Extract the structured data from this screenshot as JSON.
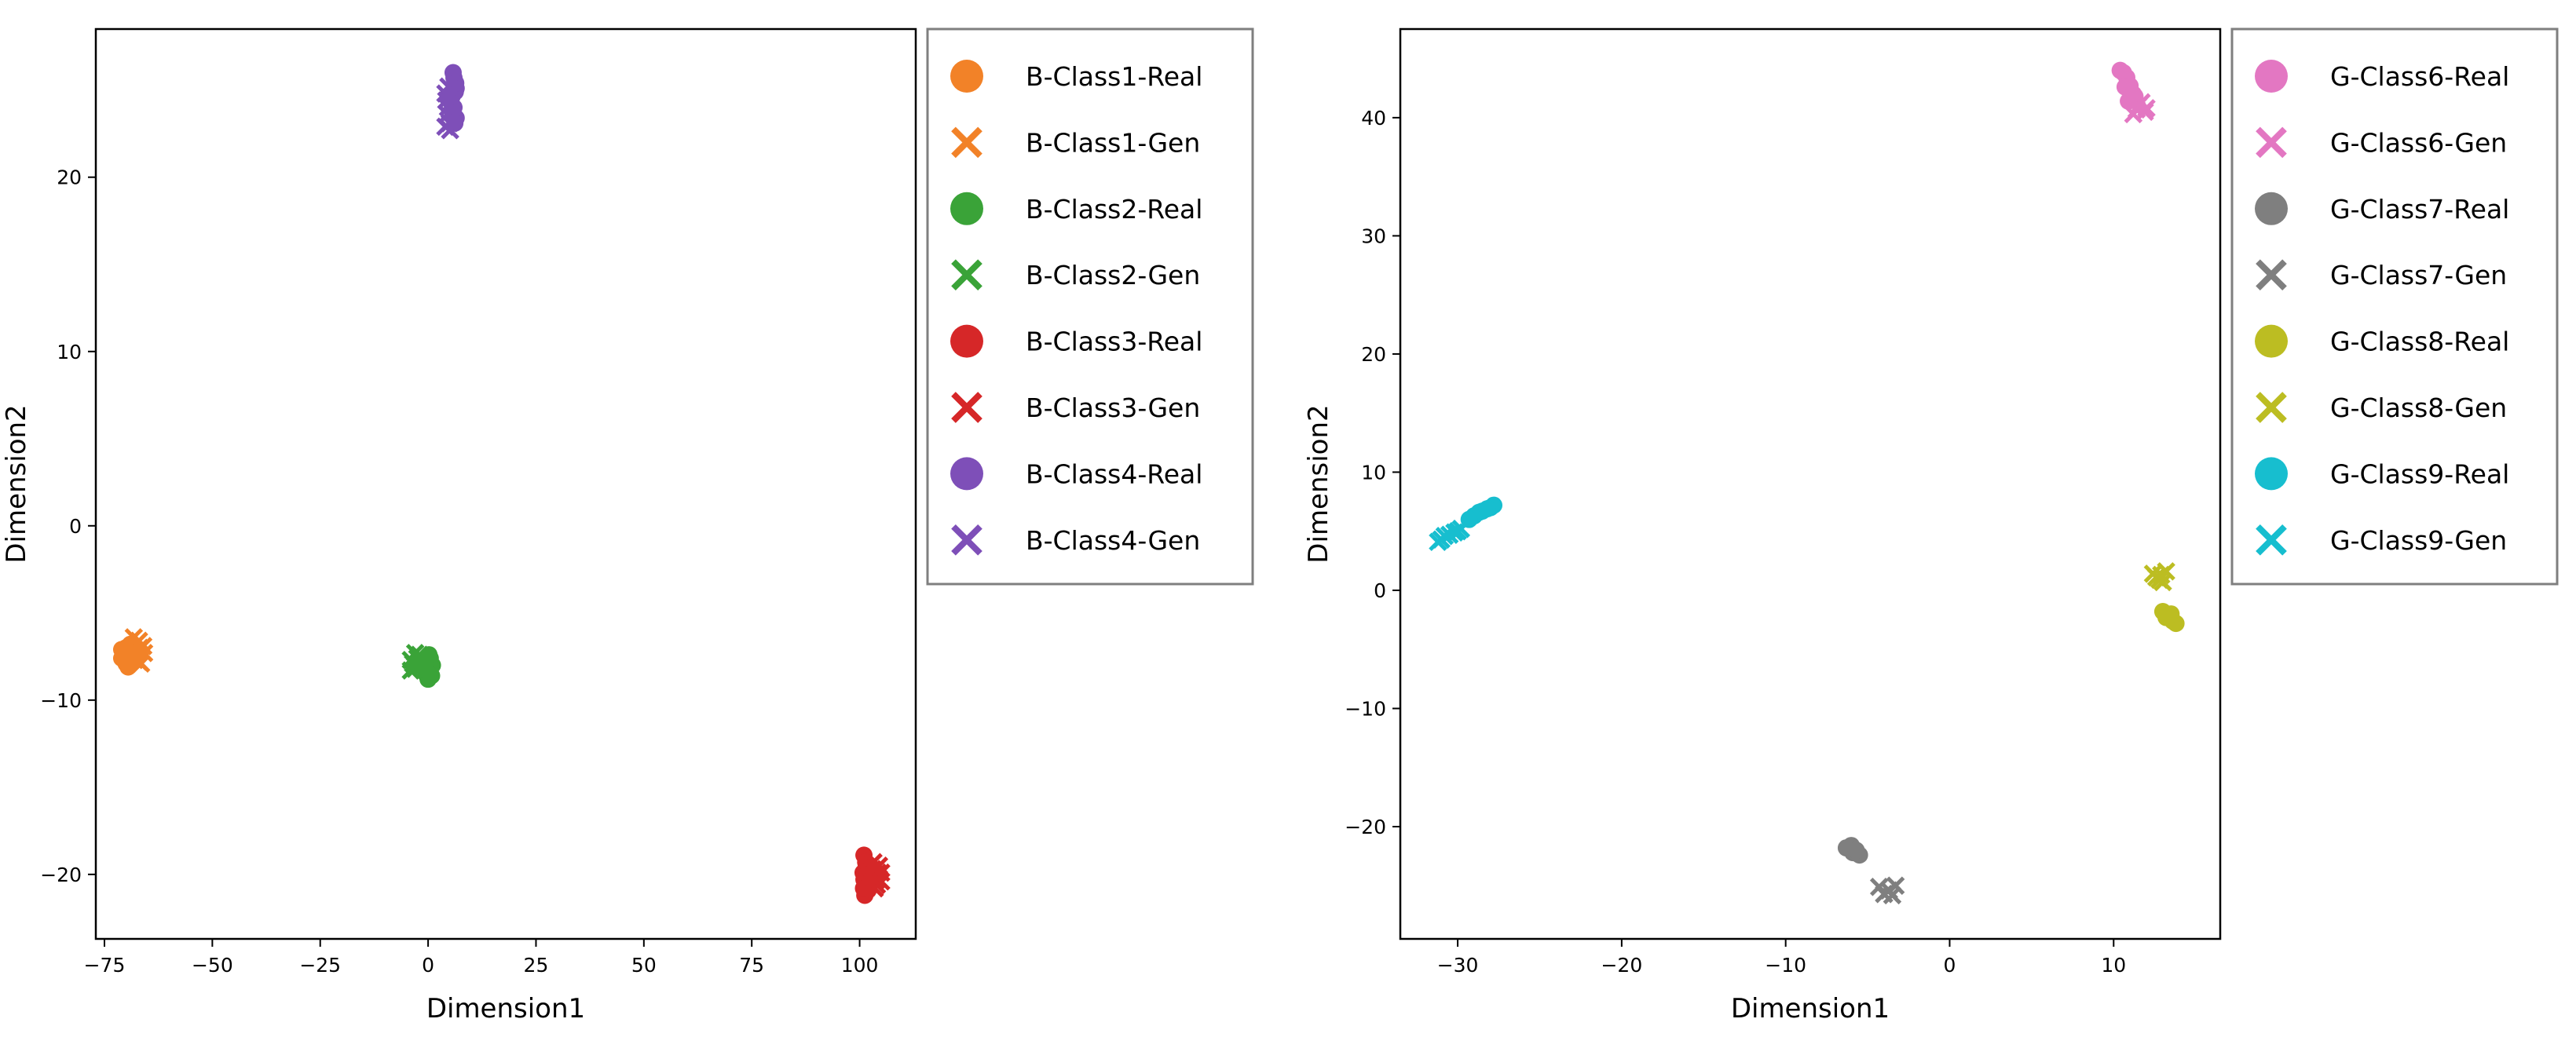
{
  "chart_data": [
    {
      "type": "scatter",
      "xlabel": "Dimension1",
      "ylabel": "Dimension2",
      "xlim": [
        -77,
        113
      ],
      "ylim": [
        -23.7,
        28.5
      ],
      "xticks": [
        -75,
        -50,
        -25,
        0,
        25,
        50,
        75,
        100
      ],
      "yticks": [
        -20,
        -10,
        0,
        10,
        20
      ],
      "xtick_labels": [
        "−75",
        "−50",
        "−25",
        "0",
        "25",
        "50",
        "75",
        "100"
      ],
      "ytick_labels": [
        "−20",
        "−10",
        "0",
        "10",
        "20"
      ],
      "legend_position": "outside-right",
      "series": [
        {
          "name": "B-Class1-Real",
          "marker": "circle",
          "color": "#f28228",
          "points": [
            [
              -71,
              -7.6
            ],
            [
              -70,
              -7.0
            ],
            [
              -69.5,
              -8.1
            ],
            [
              -70.5,
              -7.3
            ],
            [
              -69,
              -6.8
            ],
            [
              -70,
              -7.9
            ],
            [
              -71,
              -7.1
            ],
            [
              -68.5,
              -7.5
            ],
            [
              -70.2,
              -7.6
            ],
            [
              -69.3,
              -7.2
            ]
          ]
        },
        {
          "name": "B-Class1-Gen",
          "marker": "x",
          "color": "#f28228",
          "points": [
            [
              -68,
              -7.1
            ],
            [
              -67,
              -6.6
            ],
            [
              -66.5,
              -7.9
            ],
            [
              -67.5,
              -7.4
            ],
            [
              -66,
              -6.9
            ],
            [
              -68.2,
              -6.4
            ],
            [
              -67,
              -7.8
            ],
            [
              -65.8,
              -7.3
            ],
            [
              -68,
              -7.7
            ],
            [
              -66.8,
              -7.0
            ]
          ]
        },
        {
          "name": "B-Class2-Real",
          "marker": "circle",
          "color": "#3aa338",
          "points": [
            [
              -1,
              -7.9
            ],
            [
              0,
              -8.3
            ],
            [
              0.5,
              -7.6
            ],
            [
              0,
              -8.8
            ],
            [
              1,
              -8.0
            ],
            [
              -0.5,
              -8.5
            ],
            [
              0.3,
              -7.8
            ],
            [
              -0.8,
              -8.2
            ],
            [
              0.8,
              -8.6
            ],
            [
              0.2,
              -7.4
            ]
          ]
        },
        {
          "name": "B-Class2-Gen",
          "marker": "x",
          "color": "#3aa338",
          "points": [
            [
              -4,
              -7.7
            ],
            [
              -3,
              -8.2
            ],
            [
              -2,
              -7.4
            ],
            [
              -3.5,
              -7.9
            ],
            [
              -1.5,
              -8.1
            ],
            [
              -2.5,
              -7.6
            ],
            [
              -4,
              -8.3
            ],
            [
              -3,
              -7.3
            ],
            [
              -2,
              -8.0
            ],
            [
              -1.8,
              -7.7
            ]
          ]
        },
        {
          "name": "B-Class3-Real",
          "marker": "circle",
          "color": "#d62728",
          "points": [
            [
              101,
              -18.9
            ],
            [
              101.5,
              -19.6
            ],
            [
              101,
              -20.3
            ],
            [
              102,
              -20.9
            ],
            [
              101.2,
              -21.2
            ],
            [
              100.8,
              -19.9
            ],
            [
              101.7,
              -20.6
            ],
            [
              101.4,
              -19.3
            ],
            [
              100.9,
              -20.8
            ],
            [
              101.8,
              -20.0
            ]
          ]
        },
        {
          "name": "B-Class3-Gen",
          "marker": "x",
          "color": "#d62728",
          "points": [
            [
              103,
              -19.7
            ],
            [
              104,
              -20.3
            ],
            [
              105,
              -19.9
            ],
            [
              103.5,
              -20.8
            ],
            [
              104.5,
              -19.5
            ],
            [
              102.8,
              -20.1
            ],
            [
              104,
              -20.6
            ],
            [
              105,
              -20.4
            ],
            [
              103.2,
              -19.3
            ],
            [
              104.2,
              -19.9
            ]
          ]
        },
        {
          "name": "B-Class4-Real",
          "marker": "circle",
          "color": "#7e4fb8",
          "points": [
            [
              6,
              25.7
            ],
            [
              6.5,
              25.1
            ],
            [
              5.5,
              24.6
            ],
            [
              6,
              24.0
            ],
            [
              6.5,
              23.4
            ],
            [
              5.8,
              26.0
            ],
            [
              6.3,
              24.9
            ],
            [
              5.7,
              23.7
            ],
            [
              6.2,
              23.1
            ],
            [
              6.4,
              25.4
            ]
          ]
        },
        {
          "name": "B-Class4-Gen",
          "marker": "x",
          "color": "#7e4fb8",
          "points": [
            [
              4,
              24.8
            ],
            [
              5,
              24.2
            ],
            [
              4.5,
              23.6
            ],
            [
              5,
              23.1
            ],
            [
              4,
              22.9
            ],
            [
              4.7,
              25.2
            ],
            [
              5.3,
              23.8
            ],
            [
              4.2,
              24.4
            ],
            [
              5.1,
              22.7
            ],
            [
              4.6,
              24.0
            ]
          ]
        }
      ]
    },
    {
      "type": "scatter",
      "xlabel": "Dimension1",
      "ylabel": "Dimension2",
      "xlim": [
        -33.5,
        16.5
      ],
      "ylim": [
        -29.5,
        47.5
      ],
      "xticks": [
        -30,
        -20,
        -10,
        0,
        10
      ],
      "yticks": [
        -20,
        -10,
        0,
        10,
        20,
        30,
        40
      ],
      "xtick_labels": [
        "−30",
        "−20",
        "−10",
        "0",
        "10"
      ],
      "ytick_labels": [
        "−20",
        "−10",
        "0",
        "10",
        "20",
        "30",
        "40"
      ],
      "legend_position": "outside-right",
      "series": [
        {
          "name": "G-Class6-Real",
          "marker": "circle",
          "color": "#e377c2",
          "points": [
            [
              10.4,
              44.0
            ],
            [
              10.8,
              43.4
            ],
            [
              11.0,
              42.7
            ],
            [
              10.6,
              43.8
            ],
            [
              11.2,
              42.0
            ],
            [
              10.9,
              41.4
            ],
            [
              11.3,
              41.8
            ],
            [
              10.7,
              42.6
            ]
          ]
        },
        {
          "name": "G-Class6-Gen",
          "marker": "x",
          "color": "#e377c2",
          "points": [
            [
              11.5,
              41.0
            ],
            [
              11.9,
              40.5
            ],
            [
              11.2,
              40.3
            ],
            [
              11.7,
              41.3
            ],
            [
              12.0,
              40.8
            ],
            [
              11.4,
              40.7
            ]
          ]
        },
        {
          "name": "G-Class7-Real",
          "marker": "circle",
          "color": "#7f7f7f",
          "points": [
            [
              -6.3,
              -21.8
            ],
            [
              -5.9,
              -22.2
            ],
            [
              -5.5,
              -22.4
            ],
            [
              -6.0,
              -21.6
            ],
            [
              -5.7,
              -22.0
            ]
          ]
        },
        {
          "name": "G-Class7-Gen",
          "marker": "x",
          "color": "#7f7f7f",
          "points": [
            [
              -4.3,
              -25.1
            ],
            [
              -3.7,
              -25.4
            ],
            [
              -3.3,
              -25.0
            ],
            [
              -4.0,
              -25.7
            ],
            [
              -3.5,
              -25.8
            ]
          ]
        },
        {
          "name": "G-Class8-Real",
          "marker": "circle",
          "color": "#bcbd22",
          "points": [
            [
              13.0,
              -1.8
            ],
            [
              13.3,
              -2.1
            ],
            [
              13.6,
              -2.6
            ],
            [
              13.2,
              -2.3
            ],
            [
              13.8,
              -2.8
            ],
            [
              13.5,
              -2.0
            ]
          ]
        },
        {
          "name": "G-Class8-Gen",
          "marker": "x",
          "color": "#bcbd22",
          "points": [
            [
              12.4,
              1.4
            ],
            [
              12.8,
              0.9
            ],
            [
              13.2,
              1.6
            ],
            [
              12.6,
              1.1
            ],
            [
              13.0,
              0.7
            ],
            [
              12.9,
              1.3
            ]
          ]
        },
        {
          "name": "G-Class9-Real",
          "marker": "circle",
          "color": "#17becf",
          "points": [
            [
              -29.0,
              6.3
            ],
            [
              -28.5,
              6.7
            ],
            [
              -28.0,
              7.0
            ],
            [
              -28.7,
              6.6
            ],
            [
              -27.8,
              7.2
            ],
            [
              -29.3,
              6.0
            ],
            [
              -28.2,
              6.9
            ]
          ]
        },
        {
          "name": "G-Class9-Gen",
          "marker": "x",
          "color": "#17becf",
          "points": [
            [
              -31.0,
              4.3
            ],
            [
              -30.5,
              4.7
            ],
            [
              -30.0,
              5.0
            ],
            [
              -30.8,
              4.6
            ],
            [
              -31.2,
              4.1
            ],
            [
              -30.2,
              4.9
            ],
            [
              -29.8,
              5.2
            ]
          ]
        }
      ]
    }
  ]
}
